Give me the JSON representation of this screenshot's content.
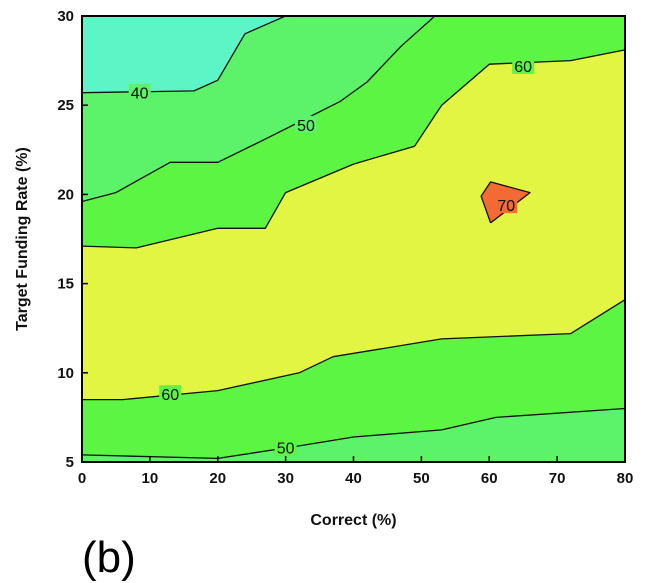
{
  "chart_data": {
    "type": "contour",
    "xlabel": "Correct (%)",
    "ylabel": "Target Funding Rate (%)",
    "xlim": [
      0,
      80
    ],
    "ylim": [
      5,
      30
    ],
    "x_ticks": [
      "0",
      "10",
      "20",
      "30",
      "40",
      "50",
      "60",
      "70",
      "80"
    ],
    "y_ticks": [
      "5",
      "10",
      "15",
      "20",
      "25",
      "30"
    ],
    "panel_label": "(b)",
    "level_colors": {
      "below_40": "#5ef5c6",
      "40_to_50": "#5cf26a",
      "50_to_60": "#5cf544",
      "60_to_70": "#e1f542",
      "above_70": "#f46a35"
    },
    "contour_lines": [
      {
        "level": 40,
        "label": "40",
        "label_at": [
          8.5,
          25.7
        ],
        "points": [
          [
            0,
            25.7
          ],
          [
            16.5,
            25.8
          ],
          [
            20,
            26.4
          ],
          [
            24,
            29
          ],
          [
            30,
            30
          ]
        ]
      },
      {
        "level": 50,
        "label": "50",
        "label_at": [
          33,
          23.9
        ],
        "points": [
          [
            0,
            19.6
          ],
          [
            5,
            20.1
          ],
          [
            13,
            21.8
          ],
          [
            20,
            21.8
          ],
          [
            27,
            23.1
          ],
          [
            38,
            25.2
          ],
          [
            42,
            26.3
          ],
          [
            47,
            28.3
          ],
          [
            52,
            30
          ]
        ]
      },
      {
        "level": 60,
        "label": "60",
        "label_at": [
          65,
          27.2
        ],
        "points": [
          [
            0,
            17.1
          ],
          [
            8,
            17
          ],
          [
            20,
            18.1
          ],
          [
            27,
            18.1
          ],
          [
            30,
            20.1
          ],
          [
            40,
            21.7
          ],
          [
            49,
            22.7
          ],
          [
            53,
            25
          ],
          [
            60,
            27.3
          ],
          [
            72,
            27.5
          ],
          [
            80,
            28.1
          ]
        ]
      },
      {
        "level": 60,
        "label": "60",
        "label_at": [
          13,
          8.8
        ],
        "points": [
          [
            0,
            8.5
          ],
          [
            6,
            8.5
          ],
          [
            20,
            9
          ],
          [
            32,
            10
          ],
          [
            37,
            10.9
          ],
          [
            53,
            11.9
          ],
          [
            72,
            12.2
          ],
          [
            80,
            14.1
          ]
        ]
      },
      {
        "level": 50,
        "label": "50",
        "label_at": [
          30,
          5.8
        ],
        "points": [
          [
            0,
            5.4
          ],
          [
            20,
            5.2
          ],
          [
            32,
            5.9
          ],
          [
            40,
            6.4
          ],
          [
            53,
            6.8
          ],
          [
            61,
            7.5
          ],
          [
            80,
            8
          ]
        ]
      },
      {
        "level": 70,
        "label": "70",
        "label_at": [
          62.5,
          19.4
        ],
        "points": [
          [
            60.2,
            18.4
          ],
          [
            58.8,
            19.9
          ],
          [
            60.2,
            20.7
          ],
          [
            66,
            20.1
          ],
          [
            60.2,
            18.4
          ]
        ]
      }
    ]
  }
}
